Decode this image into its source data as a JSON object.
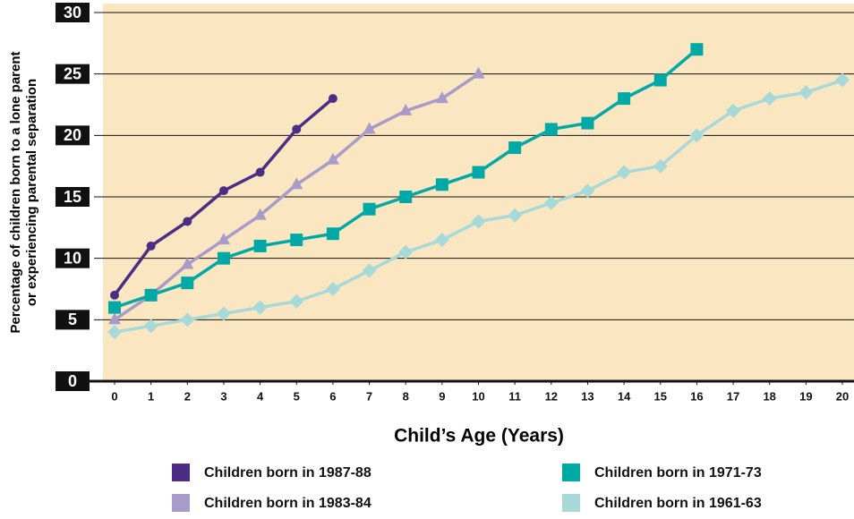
{
  "chart_data": {
    "type": "line",
    "y_label": [
      "Percentage of children born to a lone parent",
      "or experiencing parental separation"
    ],
    "x_label": "Child’s Age (Years)",
    "x": [
      0,
      1,
      2,
      3,
      4,
      5,
      6,
      7,
      8,
      9,
      10,
      11,
      12,
      13,
      14,
      15,
      16,
      17,
      18,
      19,
      20
    ],
    "xlim": [
      -0.32,
      20.32
    ],
    "xticks": [
      0,
      1,
      2,
      3,
      4,
      5,
      6,
      7,
      8,
      9,
      10,
      11,
      12,
      13,
      14,
      15,
      16,
      17,
      18,
      19,
      20
    ],
    "ylim": [
      0,
      30
    ],
    "yticks": [
      0,
      5,
      10,
      15,
      20,
      25,
      30
    ],
    "grid": true,
    "background": "#fbe6c2",
    "series": [
      {
        "name": "Children born in 1987-88",
        "color": "#4b2e83",
        "marker": "circle",
        "values": [
          7,
          11,
          13,
          15.5,
          17,
          20.5,
          23,
          null,
          null,
          null,
          null,
          null,
          null,
          null,
          null,
          null,
          null,
          null,
          null,
          null,
          null
        ]
      },
      {
        "name": "Children born in 1983-84",
        "color": "#a99bc9",
        "marker": "triangle",
        "values": [
          5,
          7,
          9.5,
          11.5,
          13.5,
          16,
          18,
          20.5,
          22,
          23,
          25,
          null,
          null,
          null,
          null,
          null,
          null,
          null,
          null,
          null,
          null
        ]
      },
      {
        "name": "Children born in 1971-73",
        "color": "#00a9a5",
        "marker": "square",
        "values": [
          6,
          7,
          8,
          10,
          11,
          11.5,
          12,
          14,
          15,
          16,
          17,
          19,
          20.5,
          21,
          23,
          24.5,
          27,
          null,
          null,
          null,
          null
        ]
      },
      {
        "name": "Children born in 1961-63",
        "color": "#a6d9d7",
        "marker": "diamond",
        "values": [
          4,
          4.5,
          5,
          5.5,
          6,
          6.5,
          7.5,
          9,
          10.5,
          11.5,
          13,
          13.5,
          14.5,
          15.5,
          17,
          17.5,
          20,
          22,
          23,
          23.5,
          24.5
        ]
      }
    ]
  }
}
